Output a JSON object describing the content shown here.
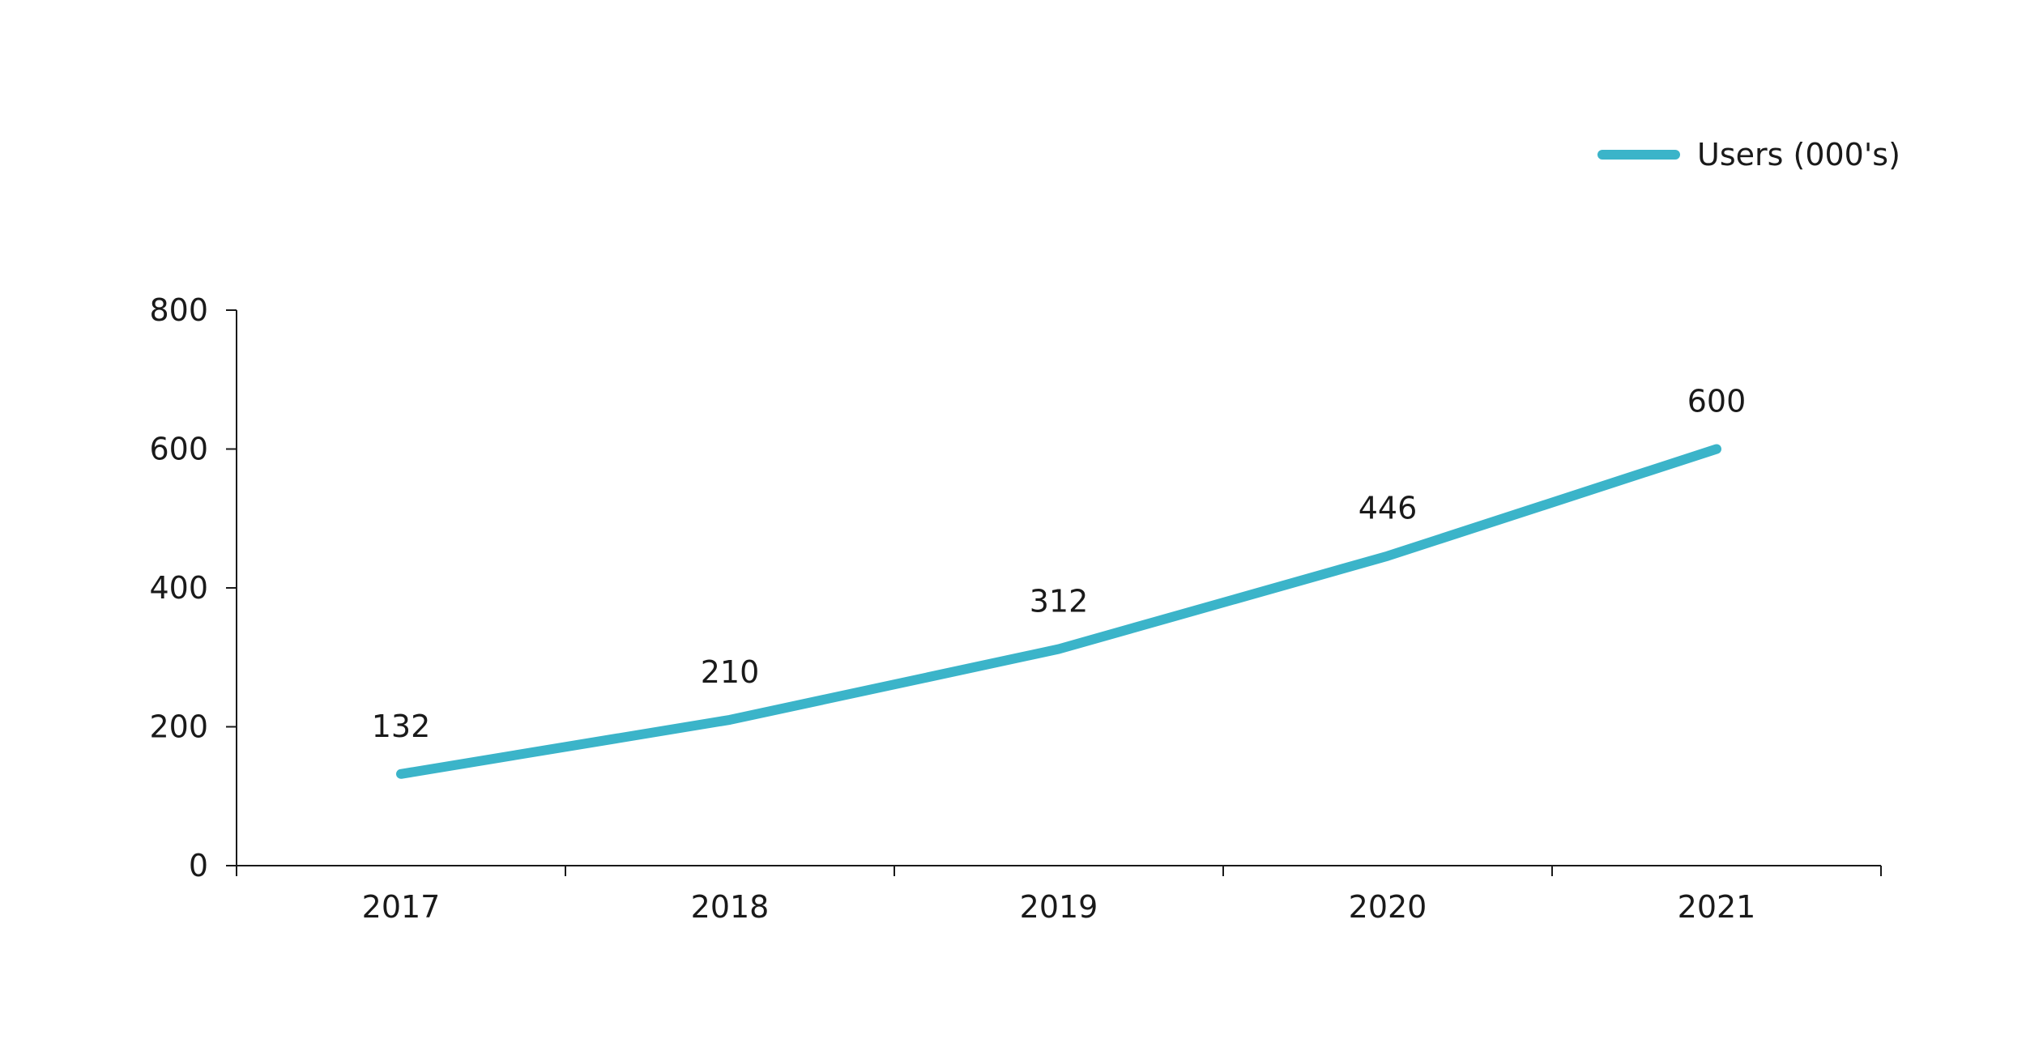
{
  "chart_data": {
    "type": "line",
    "categories": [
      "2017",
      "2018",
      "2019",
      "2020",
      "2021"
    ],
    "series": [
      {
        "name": "Users (000's)",
        "values": [
          132,
          210,
          312,
          446,
          600
        ],
        "color": "#3bb4c9"
      }
    ],
    "data_labels": [
      "132",
      "210",
      "312",
      "446",
      "600"
    ],
    "ylim": [
      0,
      800
    ],
    "yticks": [
      0,
      200,
      400,
      600,
      800
    ],
    "ytick_labels": [
      "0",
      "200",
      "400",
      "600",
      "800"
    ],
    "xlabel": "",
    "ylabel": "",
    "title": "",
    "grid": false,
    "legend_position": "top-right"
  }
}
